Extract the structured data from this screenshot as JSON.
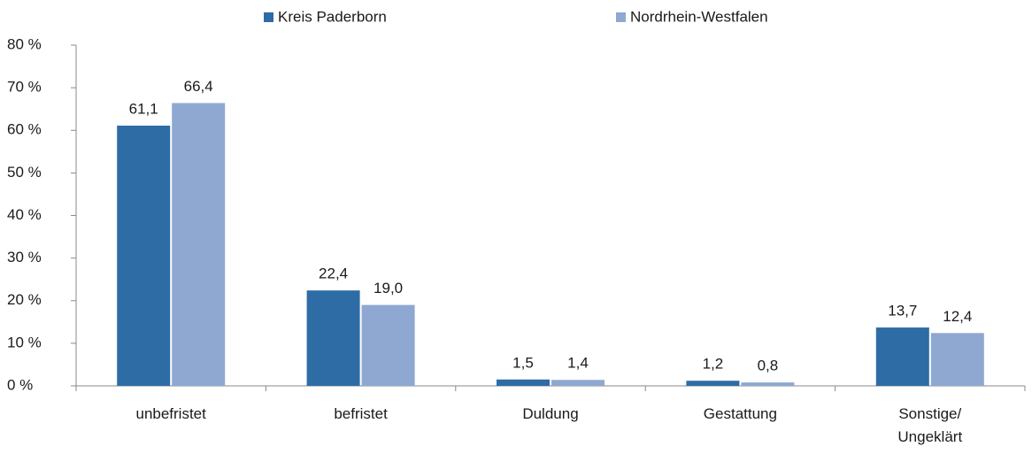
{
  "chart_data": {
    "type": "bar",
    "categories": [
      "unbefristet",
      "befristet",
      "Duldung",
      "Gestattung",
      "Sonstige/ Ungeklärt"
    ],
    "series": [
      {
        "name": "Kreis Paderborn",
        "color": "#2e6ca6",
        "values": [
          61.1,
          22.4,
          1.5,
          1.2,
          13.7
        ],
        "value_labels": [
          "61,1",
          "22,4",
          "1,5",
          "1,2",
          "13,7"
        ]
      },
      {
        "name": "Nordrhein-Westfalen",
        "color": "#8fa8d2",
        "values": [
          66.4,
          19.0,
          1.4,
          0.8,
          12.4
        ],
        "value_labels": [
          "66,4",
          "19,0",
          "1,4",
          "0,8",
          "12,4"
        ]
      }
    ],
    "ylim": [
      0,
      80
    ],
    "yticks": [
      {
        "value": 0,
        "label": "0 %"
      },
      {
        "value": 10,
        "label": "10 %"
      },
      {
        "value": 20,
        "label": "20 %"
      },
      {
        "value": 30,
        "label": "30 %"
      },
      {
        "value": 40,
        "label": "40 %"
      },
      {
        "value": 50,
        "label": "50 %"
      },
      {
        "value": 60,
        "label": "60 %"
      },
      {
        "value": 70,
        "label": "70 %"
      },
      {
        "value": 80,
        "label": "80 %"
      }
    ],
    "legend": "top"
  }
}
